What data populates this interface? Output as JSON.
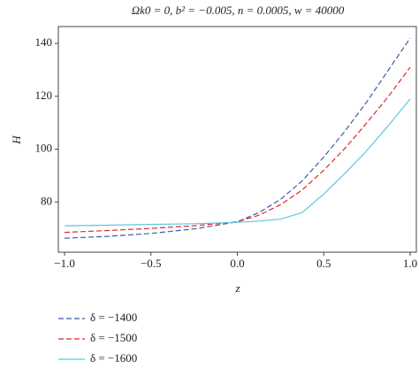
{
  "chart_data": {
    "type": "line",
    "title": "Ωk0 = 0, b² = −0.005, n = 0.0005, w = 40000",
    "x_label": "z",
    "y_label": "H",
    "x": [
      -1,
      -0.75,
      -0.5,
      -0.25,
      0,
      0.125,
      0.25,
      0.375,
      0.5,
      0.625,
      0.75,
      0.875,
      1
    ],
    "series": [
      {
        "name": "δ = −1400",
        "color": "#3b5ba9",
        "dash": true,
        "values": [
          66.3,
          67,
          68.1,
          69.8,
          72.5,
          76,
          81,
          88,
          97,
          107,
          118,
          130,
          142
        ]
      },
      {
        "name": "δ = −1500",
        "color": "#e0272a",
        "dash": true,
        "values": [
          68.5,
          69.2,
          70,
          71,
          72.5,
          75,
          79,
          84.5,
          92,
          100.5,
          110,
          120,
          131
        ]
      },
      {
        "name": "δ = −1600",
        "color": "#5bc8e0",
        "dash": false,
        "values": [
          71,
          71.2,
          71.5,
          71.8,
          72.3,
          72.8,
          73.5,
          76,
          83,
          91,
          99.5,
          109,
          119
        ]
      }
    ],
    "xlim": [
      -1.036,
      1.036
    ],
    "xticks": [
      {
        "value": -1,
        "label": "−1.0"
      },
      {
        "value": -0.5,
        "label": "−0.5"
      },
      {
        "value": 0,
        "label": "0.0"
      },
      {
        "value": 0.5,
        "label": "0.5"
      },
      {
        "value": 1,
        "label": "1.0"
      }
    ],
    "ylim": [
      61,
      146.4
    ],
    "yticks": [
      80,
      100,
      120,
      140
    ]
  }
}
